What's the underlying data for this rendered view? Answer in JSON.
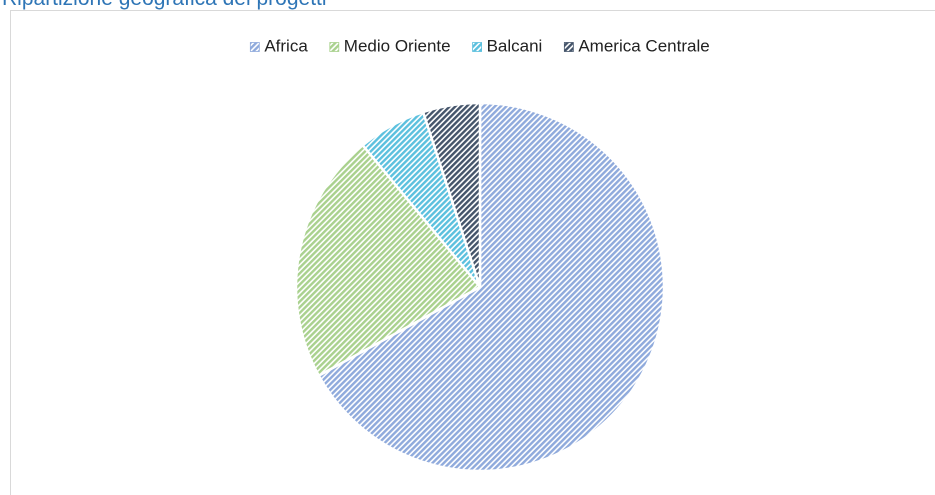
{
  "chart_data": {
    "type": "pie",
    "title": "Ripartizione geografica dei progetti",
    "categories": [
      "Africa",
      "Medio Oriente",
      "Balcani",
      "America Centrale"
    ],
    "values": [
      67,
      22,
      6,
      5
    ],
    "colors": [
      "#8faadc",
      "#a9d18e",
      "#5bc0de",
      "#44546a"
    ],
    "legend": "top"
  }
}
